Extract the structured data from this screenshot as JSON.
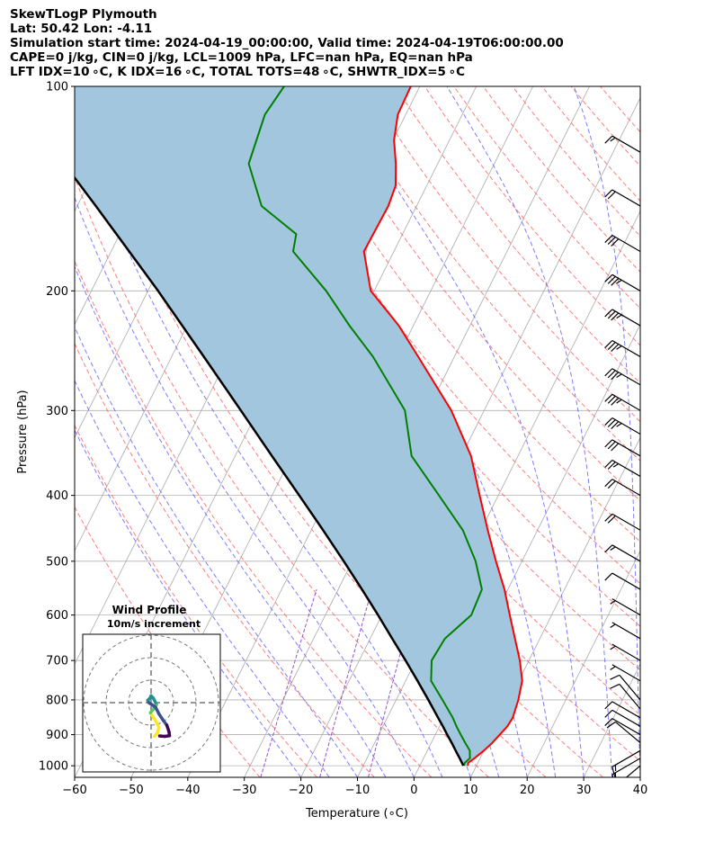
{
  "header": {
    "line1": "SkewTLogP Plymouth",
    "line2": "Lat: 50.42   Lon: -4.11",
    "line3": "Simulation start time: 2024-04-19_00:00:00, Valid time: 2024-04-19T06:00:00.00",
    "line4": "CAPE=0 j/kg, CIN=0 j/kg, LCL=1009 hPa, LFC=nan hPa, EQ=nan hPa",
    "line5": "LFT IDX=10 ∘C, K IDX=16 ∘C, TOTAL TOTS=48 ∘C, SHWTR_IDX=5 ∘C"
  },
  "chart_data": [
    {
      "type": "line",
      "subtype": "skew-t log-p",
      "xlabel": "Temperature (∘C)",
      "ylabel": "Pressure (hPa)",
      "xlim": [
        -60,
        40
      ],
      "ylim": [
        1040,
        100
      ],
      "y_scale": "log",
      "skew_deg_per_decade": 60,
      "x_ticks": [
        "−60",
        "−50",
        "−40",
        "−30",
        "−20",
        "−10",
        "0",
        "10",
        "20",
        "30",
        "40"
      ],
      "y_ticks": [
        "100",
        "200",
        "300",
        "400",
        "500",
        "600",
        "700",
        "800",
        "900",
        "1000"
      ],
      "grid": true,
      "colors": {
        "temperature": "#ff0000",
        "dewpoint": "#008000",
        "parcel": "#000000",
        "fill": "#a3c6df",
        "dry_adiabat": "#ff6666",
        "moist_adiabat": "#6666ff",
        "mixing_ratio": "#9b4fd0",
        "isotherm": "#aaaaaa"
      },
      "series": [
        {
          "role": "temperature",
          "p": [
            1000,
            990,
            975,
            950,
            925,
            900,
            875,
            850,
            800,
            750,
            700,
            650,
            600,
            550,
            500,
            450,
            400,
            350,
            300,
            250,
            225,
            200,
            175,
            150,
            140,
            130,
            120,
            110,
            100
          ],
          "t": [
            8.5,
            8.3,
            9.0,
            10.0,
            10.8,
            11.4,
            12.0,
            12.2,
            11.6,
            10.6,
            8.4,
            5.6,
            2.6,
            -0.6,
            -4.6,
            -8.8,
            -13.3,
            -18.3,
            -25.8,
            -36.4,
            -42.6,
            -50.6,
            -55.3,
            -55.0,
            -55.5,
            -57.4,
            -59.8,
            -61.4,
            -61.6
          ]
        },
        {
          "role": "dewpoint",
          "p": [
            1000,
            990,
            975,
            950,
            925,
            900,
            875,
            850,
            800,
            750,
            700,
            650,
            600,
            550,
            500,
            450,
            400,
            350,
            300,
            250,
            225,
            200,
            175,
            165,
            150,
            130,
            110,
            100
          ],
          "t": [
            7.8,
            7.7,
            8.2,
            7.5,
            6.0,
            4.5,
            3.0,
            1.6,
            -1.8,
            -5.5,
            -7.2,
            -6.8,
            -4.2,
            -4.6,
            -8.2,
            -13.2,
            -20.5,
            -28.8,
            -34.0,
            -44.4,
            -51.3,
            -58.5,
            -67.8,
            -68.8,
            -77.4,
            -83.4,
            -84.9,
            -84.0
          ]
        },
        {
          "role": "parcel",
          "p": [
            1000,
            975,
            950,
            925,
            900,
            875,
            850,
            800,
            750,
            700,
            650,
            600,
            550,
            500,
            450,
            400,
            350,
            300,
            250,
            200,
            150,
            125,
            100
          ],
          "t": [
            7.7,
            6.4,
            5.0,
            3.6,
            2.1,
            0.6,
            -1.0,
            -4.3,
            -7.9,
            -11.8,
            -16.1,
            -20.7,
            -25.8,
            -31.5,
            -37.9,
            -45.2,
            -53.5,
            -63.0,
            -74.3,
            -88.2,
            -106.7,
            -118.6,
            -133.4
          ]
        }
      ],
      "wind_barbs": [
        {
          "p": 100,
          "speed_kt": 15,
          "dir_deg": 300
        },
        {
          "p": 125,
          "speed_kt": 15,
          "dir_deg": 300
        },
        {
          "p": 150,
          "speed_kt": 20,
          "dir_deg": 300
        },
        {
          "p": 175,
          "speed_kt": 30,
          "dir_deg": 300
        },
        {
          "p": 200,
          "speed_kt": 35,
          "dir_deg": 300
        },
        {
          "p": 225,
          "speed_kt": 35,
          "dir_deg": 300
        },
        {
          "p": 250,
          "speed_kt": 35,
          "dir_deg": 300
        },
        {
          "p": 275,
          "speed_kt": 35,
          "dir_deg": 300
        },
        {
          "p": 300,
          "speed_kt": 35,
          "dir_deg": 300
        },
        {
          "p": 325,
          "speed_kt": 35,
          "dir_deg": 300
        },
        {
          "p": 350,
          "speed_kt": 30,
          "dir_deg": 300
        },
        {
          "p": 375,
          "speed_kt": 25,
          "dir_deg": 300
        },
        {
          "p": 400,
          "speed_kt": 20,
          "dir_deg": 300
        },
        {
          "p": 450,
          "speed_kt": 20,
          "dir_deg": 300
        },
        {
          "p": 500,
          "speed_kt": 15,
          "dir_deg": 300
        },
        {
          "p": 550,
          "speed_kt": 10,
          "dir_deg": 300
        },
        {
          "p": 600,
          "speed_kt": 5,
          "dir_deg": 300
        },
        {
          "p": 650,
          "speed_kt": 5,
          "dir_deg": 300
        },
        {
          "p": 700,
          "speed_kt": 5,
          "dir_deg": 300
        },
        {
          "p": 750,
          "speed_kt": 5,
          "dir_deg": 300
        },
        {
          "p": 800,
          "speed_kt": 10,
          "dir_deg": 320
        },
        {
          "p": 825,
          "speed_kt": 10,
          "dir_deg": 320
        },
        {
          "p": 850,
          "speed_kt": 10,
          "dir_deg": 300
        },
        {
          "p": 875,
          "speed_kt": 10,
          "dir_deg": 300
        },
        {
          "p": 900,
          "speed_kt": 10,
          "dir_deg": 300
        },
        {
          "p": 925,
          "speed_kt": 10,
          "dir_deg": 310
        },
        {
          "p": 950,
          "speed_kt": 15,
          "dir_deg": 240
        },
        {
          "p": 975,
          "speed_kt": 15,
          "dir_deg": 240
        },
        {
          "p": 1000,
          "speed_kt": 10,
          "dir_deg": 230
        }
      ]
    },
    {
      "type": "line",
      "subtype": "hodograph",
      "title": "Wind Profile",
      "subtitle": "10m/s increment",
      "rings_ms": [
        10,
        20,
        30
      ],
      "colormap": "viridis",
      "points": [
        {
          "u": 1.5,
          "v": -15.0
        },
        {
          "u": 2.8,
          "v": -13.5
        },
        {
          "u": 3.5,
          "v": -11.0
        },
        {
          "u": 2.5,
          "v": -9.0
        },
        {
          "u": 1.0,
          "v": -6.5
        },
        {
          "u": -0.3,
          "v": -4.5
        },
        {
          "u": 1.0,
          "v": -3.0
        },
        {
          "u": 1.5,
          "v": -2.0
        },
        {
          "u": 2.0,
          "v": -1.2
        },
        {
          "u": 2.5,
          "v": -0.8
        },
        {
          "u": 2.0,
          "v": 0.0
        },
        {
          "u": 1.0,
          "v": 2.0
        },
        {
          "u": 0.0,
          "v": 3.0
        },
        {
          "u": -0.5,
          "v": 2.0
        },
        {
          "u": -1.5,
          "v": 1.0
        },
        {
          "u": -1.0,
          "v": 0.0
        },
        {
          "u": 0.5,
          "v": -1.0
        },
        {
          "u": 2.0,
          "v": -2.0
        },
        {
          "u": 3.5,
          "v": -5.0
        },
        {
          "u": 5.5,
          "v": -8.0
        },
        {
          "u": 7.0,
          "v": -10.0
        },
        {
          "u": 8.0,
          "v": -13.0
        },
        {
          "u": 8.2,
          "v": -14.7
        },
        {
          "u": 6.0,
          "v": -15.0
        },
        {
          "u": 3.8,
          "v": -14.8
        }
      ]
    }
  ]
}
